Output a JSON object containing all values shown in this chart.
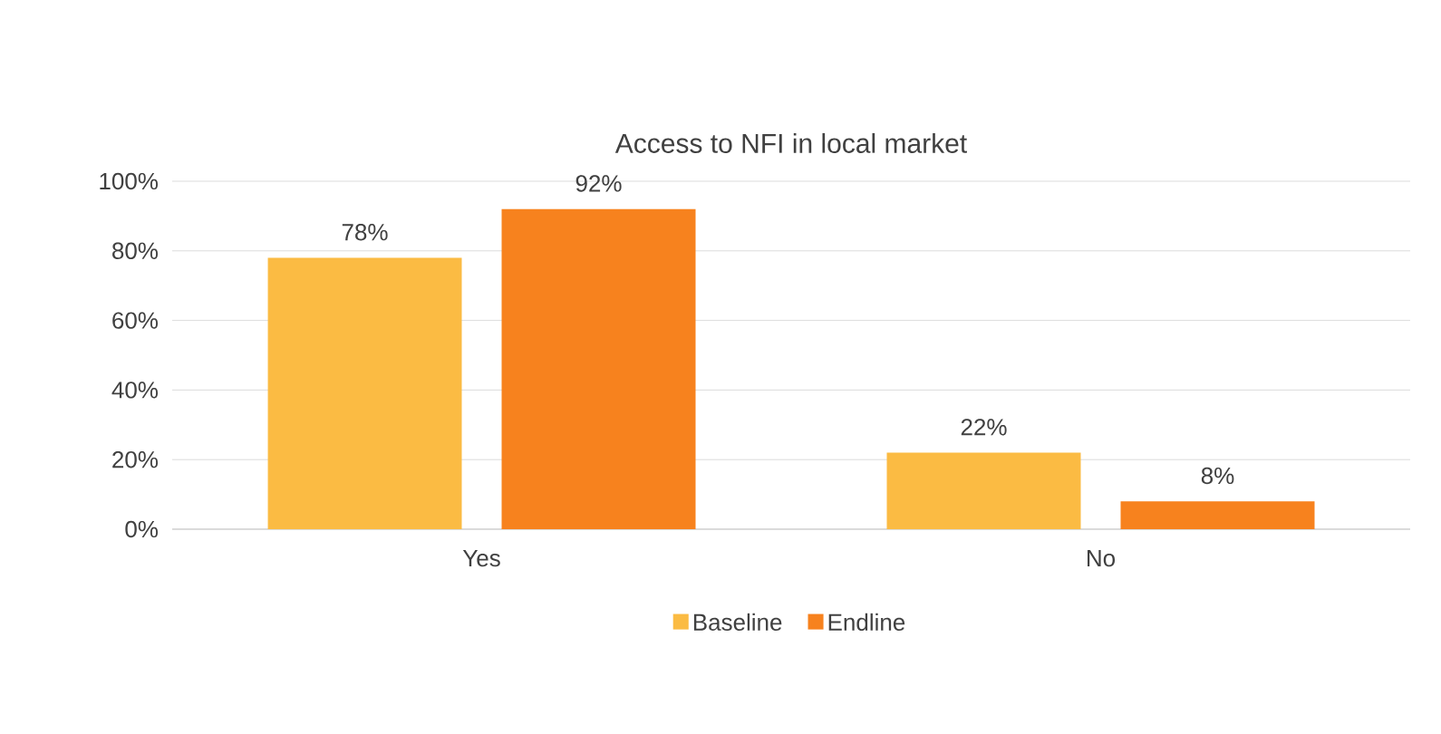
{
  "chart_data": {
    "type": "bar",
    "title": "Access to NFI in local market",
    "categories": [
      "Yes",
      "No"
    ],
    "series": [
      {
        "name": "Baseline",
        "color": "#fbbb43",
        "values": [
          78,
          22
        ],
        "value_labels": [
          "78%",
          "22%"
        ]
      },
      {
        "name": "Endline",
        "color": "#f7821e",
        "values": [
          92,
          8
        ],
        "value_labels": [
          "92%",
          "8%"
        ]
      }
    ],
    "ylim": [
      0,
      100
    ],
    "yticks": [
      {
        "value": 0,
        "label": "0%"
      },
      {
        "value": 20,
        "label": "20%"
      },
      {
        "value": 40,
        "label": "40%"
      },
      {
        "value": 60,
        "label": "60%"
      },
      {
        "value": 80,
        "label": "80%"
      },
      {
        "value": 100,
        "label": "100%"
      }
    ],
    "grid": "y",
    "legend": "bottom"
  }
}
